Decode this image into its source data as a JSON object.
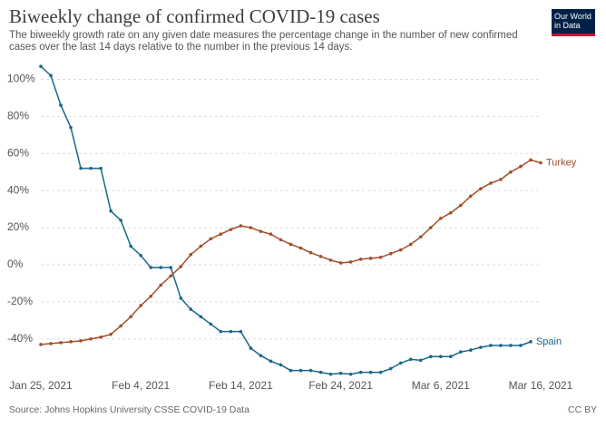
{
  "chart_data": {
    "type": "line",
    "title": "Biweekly change of confirmed COVID-19 cases",
    "subtitle": "The biweekly growth rate on any given date measures the percentage change in the number of new confirmed cases over the last 14 days relative to the number in the previous 14 days.",
    "logo": "Our World in Data",
    "source": "Source: Johns Hopkins University CSSE COVID-19 Data",
    "license": "CC BY",
    "categories": [
      "Jan 25, 2021",
      null,
      null,
      null,
      null,
      null,
      null,
      null,
      null,
      null,
      "Feb 4, 2021",
      null,
      null,
      null,
      null,
      null,
      null,
      null,
      null,
      null,
      "Feb 14, 2021",
      null,
      null,
      null,
      null,
      null,
      null,
      null,
      null,
      null,
      "Feb 24, 2021",
      null,
      null,
      null,
      null,
      null,
      null,
      null,
      null,
      null,
      "Mar 6, 2021",
      null,
      null,
      null,
      null,
      null,
      null,
      null,
      null,
      null,
      "Mar 16, 2021"
    ],
    "series": [
      {
        "name": "Spain",
        "color": "#19678a",
        "values": [
          107,
          102,
          86,
          74,
          52,
          52,
          52,
          29,
          24,
          10,
          5,
          -1.5,
          -1.5,
          -1.5,
          -18,
          -24,
          -28,
          -32,
          -36,
          -36,
          -36,
          -45,
          -49,
          -52,
          -54,
          -57,
          -57,
          -57,
          -58,
          -59,
          -58.5,
          -59,
          -58,
          -58,
          -58,
          -56,
          -53,
          -51,
          -51.5,
          -49.5,
          -49.5,
          -49.5,
          -47,
          -46,
          -44.5,
          -43.5,
          -43.5,
          -43.5,
          -43.5,
          -41.5,
          null
        ]
      },
      {
        "name": "Turkey",
        "color": "#a14f2a",
        "values": [
          -43,
          -42.5,
          -42,
          -41.5,
          -41,
          -40,
          -39,
          -37.5,
          -33,
          -28,
          -22,
          -17,
          -11,
          -6,
          -1,
          5.5,
          10,
          14,
          16.5,
          19,
          21,
          20,
          18,
          16.5,
          13.5,
          11,
          9,
          6.5,
          4.5,
          2.5,
          1,
          1.5,
          3,
          3.5,
          4,
          6,
          8,
          11,
          15,
          20,
          25,
          28,
          32,
          37,
          41,
          44,
          46,
          50,
          53,
          56.5,
          55
        ]
      }
    ],
    "ylim": [
      -60,
      110
    ],
    "yticks": [
      {
        "value": -40,
        "label": "-40%"
      },
      {
        "value": -20,
        "label": "-20%"
      },
      {
        "value": 0,
        "label": "0%"
      },
      {
        "value": 20,
        "label": "20%"
      },
      {
        "value": 40,
        "label": "40%"
      },
      {
        "value": 60,
        "label": "60%"
      },
      {
        "value": 80,
        "label": "80%"
      },
      {
        "value": 100,
        "label": "100%"
      }
    ],
    "grid": true
  }
}
